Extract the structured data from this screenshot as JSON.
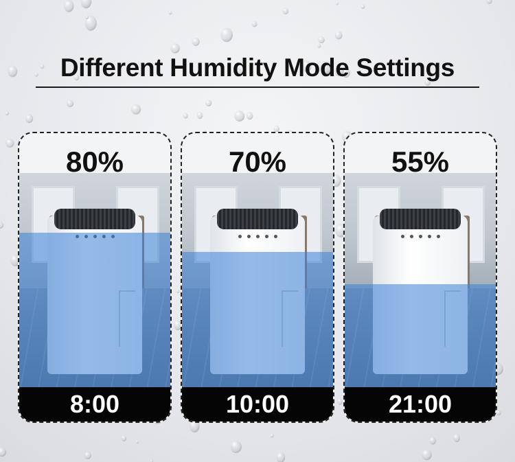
{
  "title": "Different Humidity Mode Settings",
  "cards": [
    {
      "humidity": "80%",
      "time": "8:00",
      "water_level": 0.72
    },
    {
      "humidity": "70%",
      "time": "10:00",
      "water_level": 0.63
    },
    {
      "humidity": "55%",
      "time": "21:00",
      "water_level": 0.48
    }
  ],
  "colors": {
    "water": "#3c82d7",
    "time_bar": "#050505",
    "title_text": "#111111"
  },
  "icons": [
    "dehumidifier-icon",
    "water-drop-icon"
  ]
}
